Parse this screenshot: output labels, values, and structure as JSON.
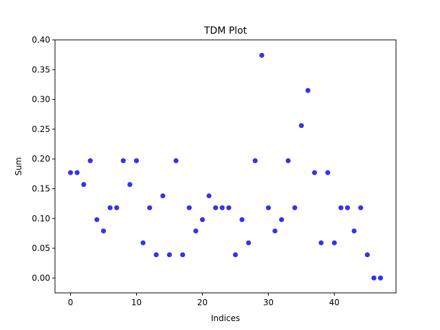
{
  "chart_data": {
    "type": "scatter",
    "title": "TDM Plot",
    "xlabel": "Indices",
    "ylabel": "Sum",
    "xlim": [
      -2.35,
      49.35
    ],
    "ylim": [
      -0.025,
      0.4
    ],
    "xticks": [
      0,
      10,
      20,
      30,
      40
    ],
    "yticks": [
      0.0,
      0.05,
      0.1,
      0.15,
      0.2,
      0.25,
      0.3,
      0.35,
      0.4
    ],
    "grid": false,
    "marker_color": "#3333ee",
    "x": [
      0,
      1,
      2,
      3,
      4,
      5,
      6,
      7,
      8,
      9,
      10,
      11,
      12,
      13,
      14,
      15,
      16,
      17,
      18,
      19,
      20,
      21,
      22,
      23,
      24,
      25,
      26,
      27,
      28,
      29,
      30,
      31,
      32,
      33,
      34,
      35,
      36,
      37,
      38,
      39,
      40,
      41,
      42,
      43,
      44,
      45,
      46,
      47
    ],
    "y": [
      0.177,
      0.177,
      0.157,
      0.197,
      0.098,
      0.079,
      0.118,
      0.118,
      0.197,
      0.157,
      0.197,
      0.059,
      0.118,
      0.039,
      0.138,
      0.039,
      0.197,
      0.039,
      0.118,
      0.079,
      0.098,
      0.138,
      0.118,
      0.118,
      0.118,
      0.039,
      0.098,
      0.059,
      0.197,
      0.374,
      0.118,
      0.079,
      0.098,
      0.197,
      0.118,
      0.256,
      0.315,
      0.177,
      0.059,
      0.177,
      0.059,
      0.118,
      0.118,
      0.079,
      0.118,
      0.039,
      0.0,
      0.0
    ]
  }
}
